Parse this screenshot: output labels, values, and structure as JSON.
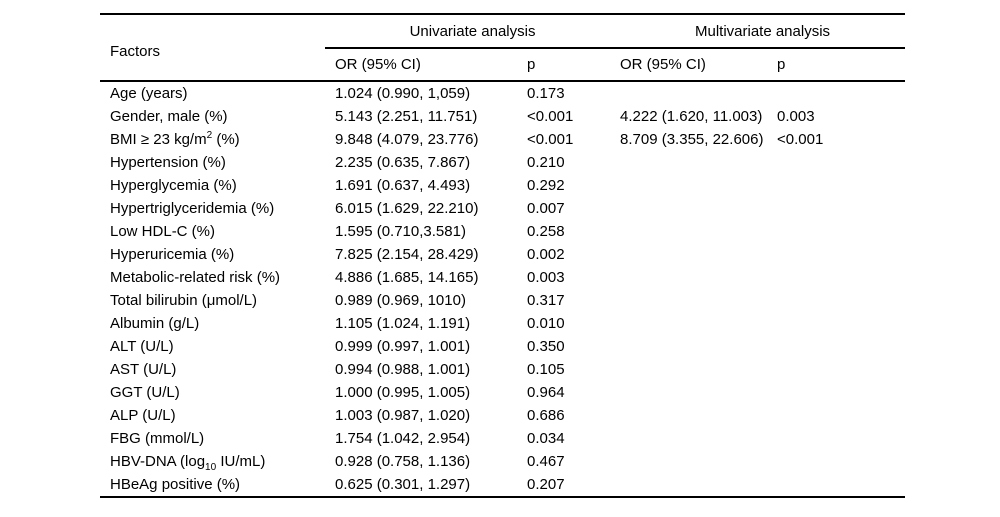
{
  "table": {
    "col1_header": "Factors",
    "group_headers": [
      "Univariate analysis",
      "Multivariate analysis"
    ],
    "sub_headers": [
      "OR (95% CI)",
      "p",
      "OR (95% CI)",
      "p"
    ],
    "text_color": "#000000",
    "rule_color": "#000000",
    "rows": [
      {
        "factor": [
          {
            "text": "Age (years)"
          }
        ],
        "uni_or": "1.024 (0.990, 1,059)",
        "uni_p": "0.173",
        "multi_or": "",
        "multi_p": ""
      },
      {
        "factor": [
          {
            "text": "Gender, male (%)"
          }
        ],
        "uni_or": "5.143 (2.251, 11.751)",
        "uni_p": "<0.001",
        "multi_or": "4.222 (1.620, 11.003)",
        "multi_p": "0.003"
      },
      {
        "factor": [
          {
            "text": "BMI ≥ 23 kg/m"
          },
          {
            "text": "2",
            "script": "sup"
          },
          {
            "text": " (%)"
          }
        ],
        "uni_or": "9.848 (4.079, 23.776)",
        "uni_p": "<0.001",
        "multi_or": "8.709 (3.355, 22.606)",
        "multi_p": "<0.001"
      },
      {
        "factor": [
          {
            "text": "Hypertension (%)"
          }
        ],
        "uni_or": "2.235 (0.635, 7.867)",
        "uni_p": "0.210",
        "multi_or": "",
        "multi_p": ""
      },
      {
        "factor": [
          {
            "text": "Hyperglycemia (%)"
          }
        ],
        "uni_or": "1.691 (0.637, 4.493)",
        "uni_p": "0.292",
        "multi_or": "",
        "multi_p": ""
      },
      {
        "factor": [
          {
            "text": "Hypertriglyceridemia (%)"
          }
        ],
        "uni_or": "6.015 (1.629, 22.210)",
        "uni_p": "0.007",
        "multi_or": "",
        "multi_p": ""
      },
      {
        "factor": [
          {
            "text": "Low HDL-C (%)"
          }
        ],
        "uni_or": "1.595 (0.710,3.581)",
        "uni_p": "0.258",
        "multi_or": "",
        "multi_p": ""
      },
      {
        "factor": [
          {
            "text": "Hyperuricemia (%)"
          }
        ],
        "uni_or": "7.825 (2.154, 28.429)",
        "uni_p": "0.002",
        "multi_or": "",
        "multi_p": ""
      },
      {
        "factor": [
          {
            "text": "Metabolic-related risk (%)"
          }
        ],
        "uni_or": "4.886 (1.685, 14.165)",
        "uni_p": "0.003",
        "multi_or": "",
        "multi_p": ""
      },
      {
        "factor": [
          {
            "text": "Total bilirubin (μmol/L)"
          }
        ],
        "uni_or": "0.989 (0.969, 1010)",
        "uni_p": "0.317",
        "multi_or": "",
        "multi_p": ""
      },
      {
        "factor": [
          {
            "text": "Albumin (g/L)"
          }
        ],
        "uni_or": "1.105 (1.024, 1.191)",
        "uni_p": "0.010",
        "multi_or": "",
        "multi_p": ""
      },
      {
        "factor": [
          {
            "text": "ALT (U/L)"
          }
        ],
        "uni_or": "0.999 (0.997, 1.001)",
        "uni_p": "0.350",
        "multi_or": "",
        "multi_p": ""
      },
      {
        "factor": [
          {
            "text": "AST (U/L)"
          }
        ],
        "uni_or": "0.994 (0.988, 1.001)",
        "uni_p": "0.105",
        "multi_or": "",
        "multi_p": ""
      },
      {
        "factor": [
          {
            "text": "GGT (U/L)"
          }
        ],
        "uni_or": "1.000 (0.995, 1.005)",
        "uni_p": "0.964",
        "multi_or": "",
        "multi_p": ""
      },
      {
        "factor": [
          {
            "text": "ALP (U/L)"
          }
        ],
        "uni_or": "1.003 (0.987, 1.020)",
        "uni_p": "0.686",
        "multi_or": "",
        "multi_p": ""
      },
      {
        "factor": [
          {
            "text": "FBG (mmol/L)"
          }
        ],
        "uni_or": "1.754 (1.042, 2.954)",
        "uni_p": "0.034",
        "multi_or": "",
        "multi_p": ""
      },
      {
        "factor": [
          {
            "text": "HBV-DNA (log"
          },
          {
            "text": "10",
            "script": "sub"
          },
          {
            "text": " IU/mL)"
          }
        ],
        "uni_or": "0.928 (0.758, 1.136)",
        "uni_p": "0.467",
        "multi_or": "",
        "multi_p": ""
      },
      {
        "factor": [
          {
            "text": "HBeAg positive (%)"
          }
        ],
        "uni_or": "0.625 (0.301, 1.297)",
        "uni_p": "0.207",
        "multi_or": "",
        "multi_p": ""
      }
    ]
  }
}
